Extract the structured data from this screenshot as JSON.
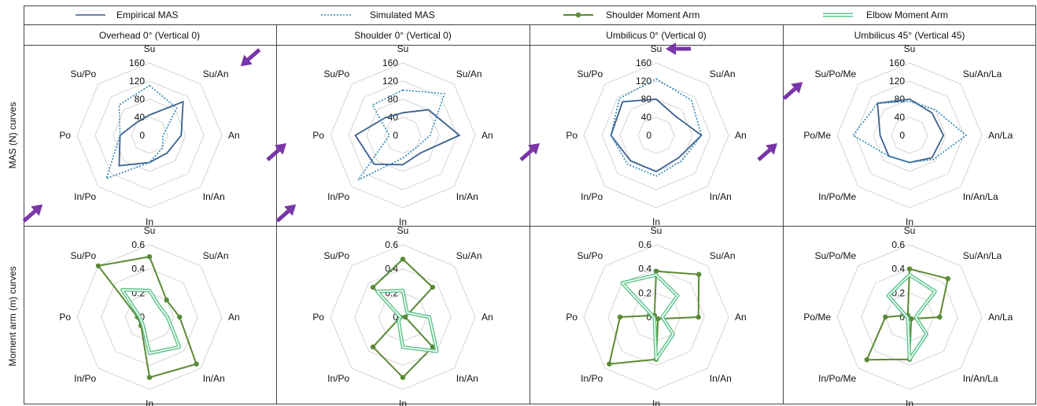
{
  "legend": {
    "empirical_mas": "Empirical MAS",
    "simulated_mas": "Simulated MAS",
    "shoulder_moment_arm": "Shoulder Moment Arm",
    "elbow_moment_arm": "Elbow Moment Arm"
  },
  "colors": {
    "empirical": "#3b5f8f",
    "simulated": "#2e86b8",
    "shoulder": "#5a8a35",
    "elbow": "#5cc48a",
    "elbow_inner": "#ffffff",
    "grid": "#d4d4d4",
    "arrow": "#7a35a8",
    "border": "#444444"
  },
  "columns": [
    "Overhead 0° (Vertical 0)",
    "Shoulder 0° (Vertical 0)",
    "Umbilicus 0° (Vertical 0)",
    "Umbilicus 45° (Vertical 45)"
  ],
  "rows": [
    "MAS (N) curves",
    "Moment arm (m) curves"
  ],
  "chart_data": [
    {
      "type": "radar",
      "row": 0,
      "col": 0,
      "rmax": 160,
      "axes": [
        "Su",
        "Su/An",
        "An",
        "In/An",
        "In",
        "In/Po",
        "Po",
        "Su/Po"
      ],
      "ticks": [
        "0",
        "40",
        "80",
        "120",
        "160"
      ],
      "series": [
        {
          "name": "Empirical MAS",
          "values": [
            45,
            105,
            70,
            55,
            60,
            95,
            65,
            40
          ]
        },
        {
          "name": "Simulated MAS",
          "values": [
            110,
            85,
            30,
            40,
            60,
            135,
            65,
            95
          ]
        }
      ],
      "annotations": [
        {
          "type": "arrow",
          "axis": "Su/An"
        },
        {
          "type": "arrow",
          "axis": "In/Po"
        }
      ]
    },
    {
      "type": "radar",
      "row": 0,
      "col": 1,
      "rmax": 160,
      "axes": [
        "Su",
        "Su/An",
        "An",
        "In/An",
        "In",
        "In/Po",
        "Po",
        "Su/Po"
      ],
      "ticks": [
        "0",
        "40",
        "80",
        "120",
        "160"
      ],
      "series": [
        {
          "name": "Empirical MAS",
          "values": [
            50,
            80,
            125,
            55,
            65,
            90,
            105,
            55
          ]
        },
        {
          "name": "Simulated MAS",
          "values": [
            100,
            130,
            60,
            40,
            50,
            140,
            30,
            95
          ]
        }
      ],
      "annotations": [
        {
          "type": "arrow",
          "axis": "Po"
        },
        {
          "type": "arrow",
          "axis": "In/Po"
        }
      ]
    },
    {
      "type": "radar",
      "row": 0,
      "col": 2,
      "rmax": 160,
      "axes": [
        "Su",
        "Su/An",
        "An",
        "In/An",
        "In",
        "In/Po",
        "Po",
        "Su/Po"
      ],
      "ticks": [
        "0",
        "40",
        "80",
        "120",
        "160"
      ],
      "series": [
        {
          "name": "Empirical MAS",
          "values": [
            80,
            60,
            100,
            70,
            80,
            80,
            100,
            105
          ]
        },
        {
          "name": "Simulated MAS",
          "values": [
            125,
            110,
            100,
            80,
            90,
            90,
            100,
            115
          ]
        }
      ],
      "annotations": [
        {
          "type": "arrow",
          "axis": "Su"
        },
        {
          "type": "arrow",
          "axis": "Po"
        }
      ]
    },
    {
      "type": "radar",
      "row": 0,
      "col": 3,
      "rmax": 160,
      "axes": [
        "Su",
        "Su/An/La",
        "An/La",
        "In/An/La",
        "In",
        "In/Po/Me",
        "Po/Me",
        "Su/Po/Me"
      ],
      "ticks": [
        "0",
        "40",
        "80",
        "120",
        "160"
      ],
      "series": [
        {
          "name": "Empirical MAS",
          "values": [
            80,
            70,
            75,
            70,
            60,
            65,
            65,
            100
          ]
        },
        {
          "name": "Simulated MAS",
          "values": [
            75,
            80,
            125,
            75,
            60,
            65,
            125,
            100
          ]
        }
      ],
      "annotations": [
        {
          "type": "arrow",
          "axis": "Su/Po/Me"
        },
        {
          "type": "arrow",
          "axis": "Po/Me"
        }
      ]
    },
    {
      "type": "radar",
      "row": 1,
      "col": 0,
      "rmax": 0.6,
      "axes": [
        "Su",
        "Su/An",
        "An",
        "In/An",
        "In",
        "In/Po",
        "Po",
        "Su/Po"
      ],
      "ticks": [
        "0",
        "0.2",
        "0.4",
        "0.6"
      ],
      "series": [
        {
          "name": "Shoulder Moment Arm",
          "values": [
            0.5,
            0.2,
            0.25,
            0.55,
            0.5,
            0.1,
            0.1,
            0.6
          ]
        },
        {
          "name": "Elbow Moment Arm",
          "values": [
            0.22,
            0.12,
            0.15,
            0.35,
            0.3,
            0.08,
            0.08,
            0.32
          ]
        }
      ]
    },
    {
      "type": "radar",
      "row": 1,
      "col": 1,
      "rmax": 0.6,
      "axes": [
        "Su",
        "Su/An",
        "An",
        "In/An",
        "In",
        "In/Po",
        "Po",
        "Su/Po"
      ],
      "ticks": [
        "0",
        "0.2",
        "0.4",
        "0.6"
      ],
      "series": [
        {
          "name": "Shoulder Moment Arm",
          "values": [
            0.48,
            0.35,
            0.02,
            0.35,
            0.5,
            0.35,
            0.02,
            0.35
          ]
        },
        {
          "name": "Elbow Moment Arm",
          "values": [
            0.22,
            0.05,
            0.22,
            0.4,
            0.25,
            0.05,
            0.02,
            0.3
          ]
        }
      ]
    },
    {
      "type": "radar",
      "row": 1,
      "col": 2,
      "rmax": 0.6,
      "axes": [
        "Su",
        "Su/An",
        "An",
        "In/An",
        "In",
        "In/Po",
        "Po",
        "Su/Po"
      ],
      "ticks": [
        "0",
        "0.2",
        "0.4",
        "0.6"
      ],
      "series": [
        {
          "name": "Shoulder Moment Arm",
          "values": [
            0.38,
            0.5,
            0.35,
            0.02,
            0.35,
            0.55,
            0.3,
            0.02
          ]
        },
        {
          "name": "Elbow Moment Arm",
          "values": [
            0.35,
            0.25,
            0.05,
            0.2,
            0.35,
            0.02,
            0.02,
            0.4
          ]
        }
      ]
    },
    {
      "type": "radar",
      "row": 1,
      "col": 3,
      "rmax": 0.6,
      "axes": [
        "Su",
        "Su/An/La",
        "An/La",
        "In/An/La",
        "In",
        "In/Po/Me",
        "Po/Me",
        "Su/Po/Me"
      ],
      "ticks": [
        "0",
        "0.2",
        "0.4",
        "0.6"
      ],
      "series": [
        {
          "name": "Shoulder Moment Arm",
          "values": [
            0.4,
            0.45,
            0.25,
            0.02,
            0.35,
            0.5,
            0.2,
            0.02
          ]
        },
        {
          "name": "Elbow Moment Arm",
          "values": [
            0.35,
            0.3,
            0.05,
            0.2,
            0.35,
            0.02,
            0.02,
            0.25
          ]
        }
      ]
    }
  ]
}
